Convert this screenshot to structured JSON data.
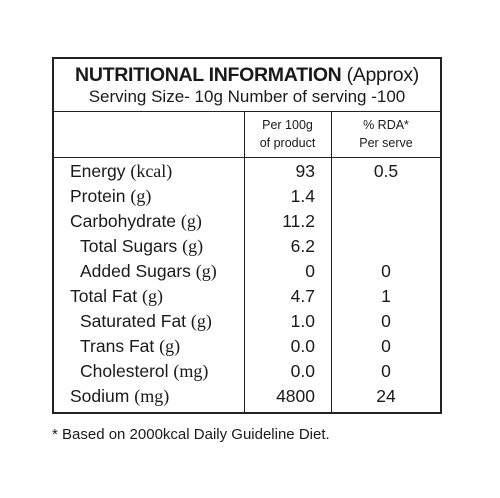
{
  "panel": {
    "title_bold": "NUTRITIONAL INFORMATION",
    "title_normal": "(Approx)",
    "serving_line": "Serving Size- 10g  Number of serving -100"
  },
  "columns": {
    "per100_line1": "Per 100g",
    "per100_line2": "of product",
    "rda_line1": "% RDA*",
    "rda_line2": "Per serve"
  },
  "rows": [
    {
      "name": "Energy",
      "unit": "(kcal)",
      "per100": "93",
      "rda": "0.5"
    },
    {
      "name": "Protein",
      "unit": "(g)",
      "per100": "1.4",
      "rda": ""
    },
    {
      "name": "Carbohydrate",
      "unit": "(g)",
      "per100": "11.2",
      "rda": ""
    },
    {
      "name": "Total Sugars",
      "unit": "(g)",
      "per100": "6.2",
      "rda": ""
    },
    {
      "name": "Added Sugars",
      "unit": "(g)",
      "per100": "0",
      "rda": "0"
    },
    {
      "name": "Total Fat",
      "unit": "(g)",
      "per100": "4.7",
      "rda": "1"
    },
    {
      "name": "Saturated Fat",
      "unit": "(g)",
      "per100": "1.0",
      "rda": "0"
    },
    {
      "name": "Trans Fat",
      "unit": "(g)",
      "per100": "0.0",
      "rda": "0"
    },
    {
      "name": "Cholesterol",
      "unit": "(mg)",
      "per100": "0.0",
      "rda": "0"
    },
    {
      "name": "Sodium",
      "unit": "(mg)",
      "per100": "4800",
      "rda": "24"
    }
  ],
  "footnote": "* Based on 2000kcal Daily Guideline Diet."
}
